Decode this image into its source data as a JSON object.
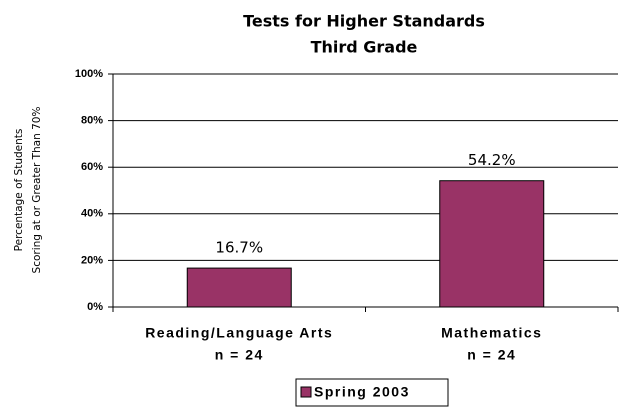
{
  "chart_data": {
    "type": "bar",
    "title": "Tests for Higher Standards",
    "subtitle": "Third Grade",
    "ylabel": [
      "Percentage of Students",
      "Scoring at or Greater Than 70%"
    ],
    "categories": [
      [
        "Reading/Language Arts",
        "n = 24"
      ],
      [
        "Mathematics",
        "n = 24"
      ]
    ],
    "series": [
      {
        "name": "Spring 2003",
        "color": "#993366",
        "values": [
          16.7,
          54.2
        ],
        "value_labels": [
          "16.7%",
          "54.2%"
        ]
      }
    ],
    "ylim": [
      0,
      100
    ],
    "yticks": [
      {
        "value": 0,
        "label": "0%"
      },
      {
        "value": 20,
        "label": "20%"
      },
      {
        "value": 40,
        "label": "40%"
      },
      {
        "value": 60,
        "label": "60%"
      },
      {
        "value": 80,
        "label": "80%"
      },
      {
        "value": 100,
        "label": "100%"
      }
    ],
    "grid": true,
    "legend": "bottom"
  }
}
